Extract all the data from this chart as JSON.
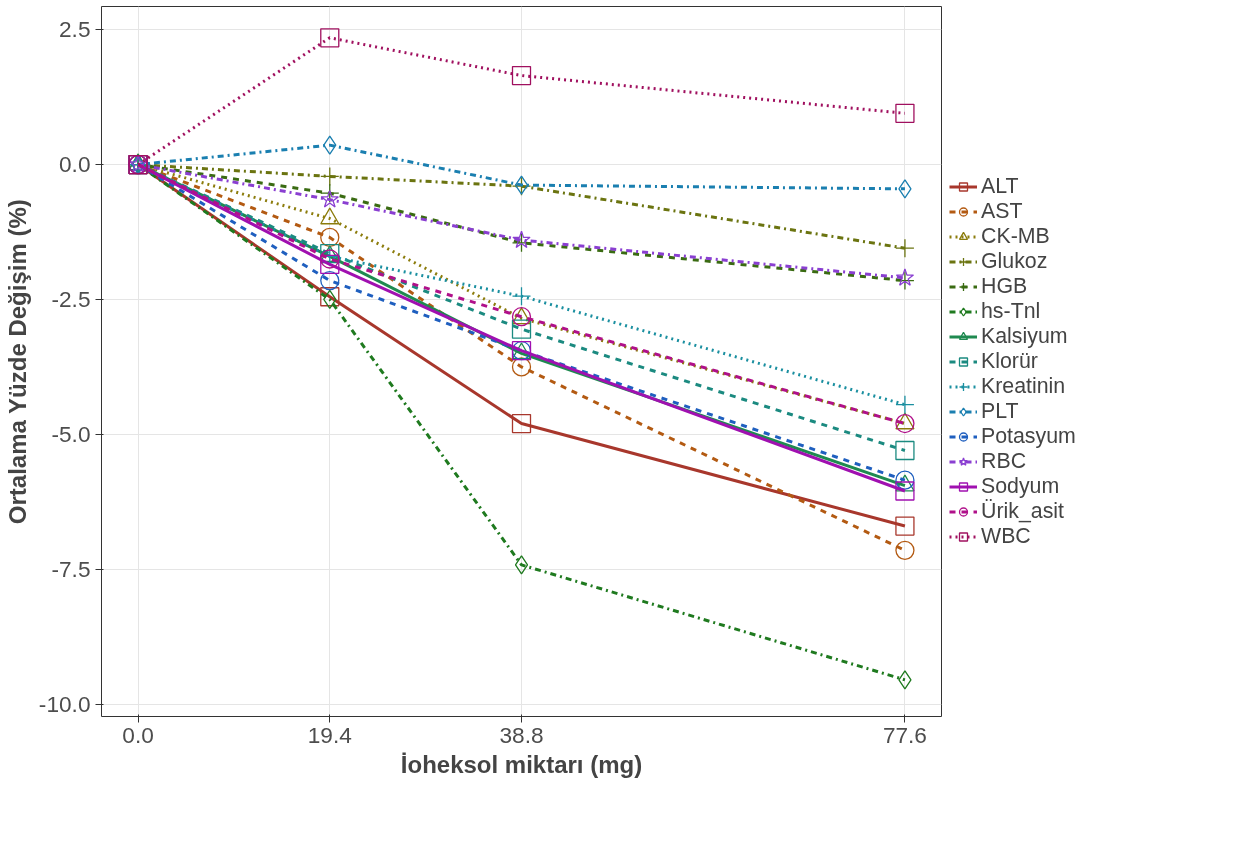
{
  "chart_data": {
    "type": "line",
    "xlabel": "İoheksol miktarı (mg)",
    "ylabel": "Ortalama Yüzde Değişim (%)",
    "x": [
      0,
      19.4,
      38.8,
      77.6
    ],
    "xlim": [
      -3.7,
      81.3
    ],
    "xticks": [
      {
        "value": 0,
        "label": "0.0"
      },
      19.4,
      38.8,
      77.6
    ],
    "ylim": [
      -10.23,
      2.93
    ],
    "yticks": [
      2.5,
      {
        "value": 0,
        "label": "0.0"
      },
      -2.5,
      {
        "value": -5,
        "label": "-5.0"
      },
      -7.5,
      {
        "value": -10,
        "label": "-10.0"
      }
    ],
    "grid": true,
    "legend": "right",
    "series": [
      {
        "name": "ALT",
        "color": "#a8372c",
        "marker": "square",
        "line_style": "solid",
        "values": [
          0,
          -2.45,
          -4.8,
          -6.7
        ]
      },
      {
        "name": "AST",
        "color": "#b35a12",
        "marker": "circle",
        "line_style": "dashed",
        "values": [
          0,
          -1.35,
          -3.75,
          -7.15
        ]
      },
      {
        "name": "CK-MB",
        "color": "#8c7c0c",
        "marker": "triangle",
        "line_style": "dotted",
        "values": [
          0,
          -1.0,
          -2.85,
          -4.8
        ]
      },
      {
        "name": "Glukoz",
        "color": "#6b7410",
        "marker": "cross",
        "line_style": "dashdot",
        "values": [
          0,
          -0.22,
          -0.4,
          -1.55
        ]
      },
      {
        "name": "HGB",
        "color": "#3a6b12",
        "marker": "cross",
        "line_style": "dashed",
        "values": [
          0,
          -0.53,
          -1.45,
          -2.15
        ]
      },
      {
        "name": "hs-Tnl",
        "color": "#1f7a1f",
        "marker": "diamond",
        "line_style": "dashdot",
        "values": [
          0,
          -2.5,
          -7.42,
          -9.55
        ]
      },
      {
        "name": "Kalsiyum",
        "color": "#1f8a50",
        "marker": "triangle",
        "line_style": "solid",
        "values": [
          0,
          -1.7,
          -3.5,
          -5.95
        ]
      },
      {
        "name": "Klorür",
        "color": "#1b8a80",
        "marker": "square",
        "line_style": "dashed",
        "values": [
          0,
          -1.65,
          -3.05,
          -5.3
        ]
      },
      {
        "name": "Kreatinin",
        "color": "#1a8fa0",
        "marker": "cross",
        "line_style": "dotted",
        "values": [
          0,
          -1.7,
          -2.44,
          -4.45
        ]
      },
      {
        "name": "PLT",
        "color": "#1a7fb0",
        "marker": "diamond",
        "line_style": "dashdot",
        "values": [
          0,
          0.36,
          -0.38,
          -0.45
        ]
      },
      {
        "name": "Potasyum",
        "color": "#1f5fbf",
        "marker": "circle",
        "line_style": "dashed",
        "values": [
          0,
          -2.15,
          -3.45,
          -5.85
        ]
      },
      {
        "name": "RBC",
        "color": "#8a3fd1",
        "marker": "star",
        "line_style": "dashdot",
        "values": [
          0,
          -0.65,
          -1.4,
          -2.1
        ]
      },
      {
        "name": "Sodyum",
        "color": "#a010b0",
        "marker": "square",
        "line_style": "solid",
        "values": [
          0,
          -1.85,
          -3.45,
          -6.05
        ]
      },
      {
        "name": "Ürik_asit",
        "color": "#b0108a",
        "marker": "circle",
        "line_style": "dashed",
        "values": [
          0,
          -1.75,
          -2.82,
          -4.8
        ]
      },
      {
        "name": "WBC",
        "color": "#a0105f",
        "marker": "square",
        "line_style": "dotted",
        "values": [
          0,
          2.35,
          1.65,
          0.95
        ]
      }
    ]
  }
}
